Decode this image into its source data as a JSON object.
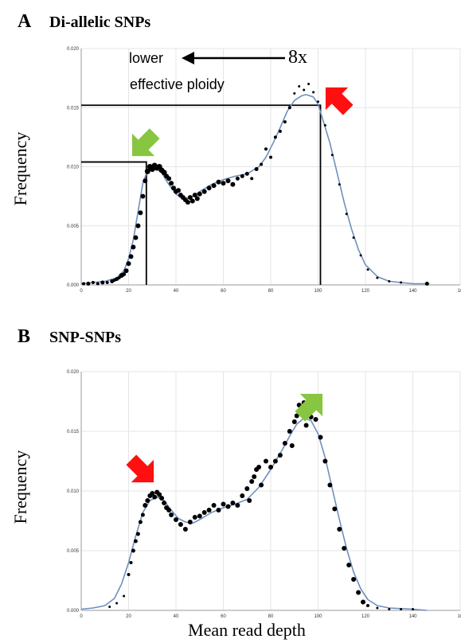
{
  "figure": {
    "xlabel": "Mean read depth",
    "ylabel": "Frequency"
  },
  "colors": {
    "curve": "#6f8fbf",
    "points": "#000000",
    "axis": "#999999",
    "grid": "#e6e6e6",
    "green_arrow": "#88c540",
    "red_arrow": "#ff1010"
  },
  "chart_data": [
    {
      "type": "scatter",
      "panel": "A",
      "title": "Di-allelic SNPs",
      "xlabel": "",
      "ylabel": "Frequency",
      "xlim": [
        0,
        160
      ],
      "ylim": [
        0,
        0.02
      ],
      "x_ticks": [
        "0",
        "20",
        "40",
        "60",
        "80",
        "100",
        "120",
        "140",
        "16"
      ],
      "y_ticks": [
        "0.000",
        "0.005",
        "0.010",
        "0.015",
        "0.020"
      ],
      "grid": true,
      "annotations": {
        "line1": "lower",
        "line2": "effective ploidy",
        "fold": "8x"
      },
      "guide_lines": [
        {
          "x": 27.5,
          "y": 0.0104
        },
        {
          "x": 101,
          "y": 0.0152
        }
      ],
      "curve": {
        "x": [
          0,
          5,
          10,
          15,
          18,
          20,
          22,
          24,
          26,
          28,
          30,
          32,
          34,
          36,
          38,
          40,
          42,
          44,
          46,
          48,
          50,
          55,
          60,
          65,
          70,
          75,
          78,
          81,
          84,
          87,
          90,
          93,
          95,
          98,
          100,
          102,
          105,
          108,
          111,
          114,
          117,
          120,
          125,
          130,
          140,
          147
        ],
        "y": [
          0.0001,
          0.0002,
          0.0003,
          0.0006,
          0.0012,
          0.0022,
          0.0038,
          0.0062,
          0.0086,
          0.0097,
          0.0099,
          0.0098,
          0.0095,
          0.0088,
          0.0082,
          0.0077,
          0.0074,
          0.0073,
          0.0074,
          0.0076,
          0.0079,
          0.0085,
          0.0089,
          0.0092,
          0.0094,
          0.01,
          0.0108,
          0.012,
          0.0133,
          0.0147,
          0.0156,
          0.016,
          0.0161,
          0.0159,
          0.0153,
          0.014,
          0.012,
          0.0095,
          0.007,
          0.0048,
          0.003,
          0.0017,
          0.0007,
          0.0003,
          0.0001,
          0.0001
        ]
      },
      "points": [
        [
          1,
          0.0001,
          2
        ],
        [
          3,
          0.0001,
          2.5
        ],
        [
          5,
          0.0002,
          2
        ],
        [
          7,
          0.0001,
          2
        ],
        [
          9,
          0.0002,
          2.5
        ],
        [
          11,
          0.0002,
          2
        ],
        [
          13,
          0.0003,
          2.5
        ],
        [
          14,
          0.0004,
          2
        ],
        [
          15,
          0.0005,
          2.5
        ],
        [
          16,
          0.0006,
          2
        ],
        [
          17,
          0.0008,
          3
        ],
        [
          18,
          0.0009,
          2.5
        ],
        [
          19,
          0.0012,
          3
        ],
        [
          20,
          0.0018,
          3
        ],
        [
          21,
          0.0024,
          3
        ],
        [
          22,
          0.0032,
          3
        ],
        [
          23,
          0.004,
          3
        ],
        [
          24,
          0.005,
          3
        ],
        [
          25,
          0.0061,
          3
        ],
        [
          26,
          0.0075,
          3
        ],
        [
          27,
          0.0088,
          3
        ],
        [
          28,
          0.0096,
          3.5
        ],
        [
          29,
          0.01,
          3.5
        ],
        [
          30,
          0.0098,
          3.5
        ],
        [
          31,
          0.0101,
          3.5
        ],
        [
          32,
          0.0099,
          3.5
        ],
        [
          33,
          0.01,
          3.5
        ],
        [
          34,
          0.0097,
          3.5
        ],
        [
          35,
          0.0095,
          3.5
        ],
        [
          36,
          0.0092,
          3
        ],
        [
          37,
          0.009,
          3
        ],
        [
          38,
          0.0086,
          3
        ],
        [
          39,
          0.0082,
          3
        ],
        [
          40,
          0.0079,
          3
        ],
        [
          41,
          0.008,
          3
        ],
        [
          42,
          0.0076,
          3
        ],
        [
          43,
          0.0074,
          3
        ],
        [
          44,
          0.0072,
          3
        ],
        [
          45,
          0.007,
          3
        ],
        [
          46,
          0.0074,
          3
        ],
        [
          47,
          0.0071,
          3
        ],
        [
          48,
          0.0076,
          3
        ],
        [
          49,
          0.0073,
          3
        ],
        [
          50,
          0.0077,
          3
        ],
        [
          52,
          0.0079,
          3
        ],
        [
          54,
          0.0082,
          3
        ],
        [
          56,
          0.0084,
          3
        ],
        [
          58,
          0.0087,
          3
        ],
        [
          60,
          0.0086,
          3
        ],
        [
          62,
          0.0088,
          3
        ],
        [
          64,
          0.0085,
          3
        ],
        [
          66,
          0.009,
          2.5
        ],
        [
          68,
          0.0092,
          2.5
        ],
        [
          70,
          0.0094,
          2.5
        ],
        [
          72,
          0.009,
          2
        ],
        [
          74,
          0.0098,
          2.5
        ],
        [
          76,
          0.0102,
          2
        ],
        [
          78,
          0.0115,
          2
        ],
        [
          80,
          0.0108,
          2
        ],
        [
          82,
          0.0125,
          2
        ],
        [
          84,
          0.013,
          2
        ],
        [
          86,
          0.0138,
          2
        ],
        [
          88,
          0.015,
          2
        ],
        [
          90,
          0.0162,
          1.5
        ],
        [
          92,
          0.0168,
          1.5
        ],
        [
          94,
          0.0165,
          1.5
        ],
        [
          96,
          0.017,
          1.5
        ],
        [
          98,
          0.0163,
          1.5
        ],
        [
          100,
          0.0155,
          1.5
        ],
        [
          103,
          0.0135,
          1.5
        ],
        [
          106,
          0.011,
          1.5
        ],
        [
          109,
          0.0085,
          1.5
        ],
        [
          112,
          0.006,
          1.5
        ],
        [
          115,
          0.004,
          1.5
        ],
        [
          118,
          0.0025,
          1.5
        ],
        [
          121,
          0.0013,
          1.5
        ],
        [
          125,
          0.0006,
          1.5
        ],
        [
          130,
          0.0003,
          1.5
        ],
        [
          135,
          0.0002,
          1.5
        ],
        [
          146,
          0.0001,
          2.5
        ]
      ]
    },
    {
      "type": "scatter",
      "panel": "B",
      "title": "SNP-SNPs",
      "xlabel": "Mean read depth",
      "ylabel": "Frequency",
      "xlim": [
        0,
        160
      ],
      "ylim": [
        0,
        0.02
      ],
      "x_ticks": [
        "0",
        "20",
        "40",
        "60",
        "80",
        "100",
        "120",
        "140",
        "16"
      ],
      "y_ticks": [
        "0.000",
        "0.005",
        "0.010",
        "0.015",
        "0.020"
      ],
      "grid": true,
      "curve": {
        "x": [
          0,
          5,
          10,
          14,
          17,
          20,
          23,
          26,
          29,
          32,
          35,
          38,
          41,
          44,
          47,
          50,
          55,
          60,
          65,
          70,
          75,
          80,
          85,
          88,
          91,
          94,
          97,
          100,
          103,
          106,
          109,
          112,
          115,
          118,
          121,
          125,
          130,
          140,
          146
        ],
        "y": [
          0.0001,
          0.0002,
          0.0004,
          0.001,
          0.0022,
          0.004,
          0.0062,
          0.0082,
          0.0092,
          0.0095,
          0.0092,
          0.0084,
          0.0077,
          0.0074,
          0.0073,
          0.0076,
          0.0082,
          0.0086,
          0.0089,
          0.0093,
          0.0103,
          0.0118,
          0.0135,
          0.0146,
          0.0156,
          0.0161,
          0.0159,
          0.0148,
          0.0128,
          0.0102,
          0.0076,
          0.0052,
          0.0032,
          0.0018,
          0.0009,
          0.0004,
          0.0002,
          0.0001,
          0.0
        ]
      },
      "points": [
        [
          12,
          0.0003,
          1.5
        ],
        [
          15,
          0.0006,
          1.5
        ],
        [
          18,
          0.0012,
          1.5
        ],
        [
          20,
          0.003,
          2
        ],
        [
          21,
          0.004,
          2
        ],
        [
          22,
          0.005,
          2.5
        ],
        [
          23,
          0.0058,
          2.5
        ],
        [
          24,
          0.0064,
          2.5
        ],
        [
          25,
          0.0074,
          2.5
        ],
        [
          26,
          0.008,
          2.5
        ],
        [
          27,
          0.0088,
          3
        ],
        [
          28,
          0.0092,
          3
        ],
        [
          29,
          0.0096,
          3
        ],
        [
          30,
          0.0098,
          3
        ],
        [
          31,
          0.0095,
          3
        ],
        [
          32,
          0.0099,
          3
        ],
        [
          33,
          0.0097,
          3
        ],
        [
          34,
          0.0094,
          3
        ],
        [
          35,
          0.009,
          3
        ],
        [
          36,
          0.0086,
          3
        ],
        [
          37,
          0.0084,
          3
        ],
        [
          38,
          0.008,
          3
        ],
        [
          40,
          0.0076,
          3
        ],
        [
          42,
          0.0072,
          3
        ],
        [
          44,
          0.0068,
          3
        ],
        [
          46,
          0.0074,
          3
        ],
        [
          48,
          0.0078,
          3
        ],
        [
          50,
          0.0079,
          3
        ],
        [
          52,
          0.0082,
          3
        ],
        [
          54,
          0.0084,
          3
        ],
        [
          56,
          0.0088,
          3
        ],
        [
          58,
          0.0084,
          3
        ],
        [
          60,
          0.0089,
          3
        ],
        [
          62,
          0.0087,
          3
        ],
        [
          64,
          0.009,
          3
        ],
        [
          66,
          0.0088,
          3
        ],
        [
          68,
          0.0096,
          3
        ],
        [
          70,
          0.0102,
          3
        ],
        [
          71,
          0.0092,
          3
        ],
        [
          72,
          0.0108,
          3
        ],
        [
          73,
          0.0112,
          3
        ],
        [
          74,
          0.0118,
          3
        ],
        [
          75,
          0.012,
          3
        ],
        [
          76,
          0.0105,
          3
        ],
        [
          78,
          0.0125,
          3
        ],
        [
          80,
          0.012,
          3
        ],
        [
          82,
          0.0125,
          3
        ],
        [
          84,
          0.013,
          3
        ],
        [
          86,
          0.014,
          3
        ],
        [
          88,
          0.015,
          3
        ],
        [
          89,
          0.0138,
          3
        ],
        [
          90,
          0.0158,
          3
        ],
        [
          91,
          0.0163,
          3
        ],
        [
          92,
          0.0172,
          3
        ],
        [
          93,
          0.0165,
          3
        ],
        [
          94,
          0.0174,
          3
        ],
        [
          95,
          0.0155,
          3
        ],
        [
          96,
          0.0168,
          3
        ],
        [
          97,
          0.0162,
          3
        ],
        [
          98,
          0.0172,
          3
        ],
        [
          99,
          0.016,
          3
        ],
        [
          101,
          0.0145,
          3
        ],
        [
          103,
          0.0125,
          3
        ],
        [
          105,
          0.0105,
          3
        ],
        [
          107,
          0.0085,
          3
        ],
        [
          109,
          0.0068,
          3
        ],
        [
          111,
          0.0052,
          3
        ],
        [
          113,
          0.0038,
          3
        ],
        [
          115,
          0.0026,
          3
        ],
        [
          117,
          0.0015,
          3
        ],
        [
          119,
          0.0007,
          3
        ],
        [
          121,
          0.0004,
          2
        ],
        [
          125,
          0.0002,
          1.5
        ],
        [
          130,
          0.0001,
          1.5
        ],
        [
          135,
          0.0001,
          1.5
        ],
        [
          140,
          0.0001,
          1.5
        ]
      ]
    }
  ]
}
